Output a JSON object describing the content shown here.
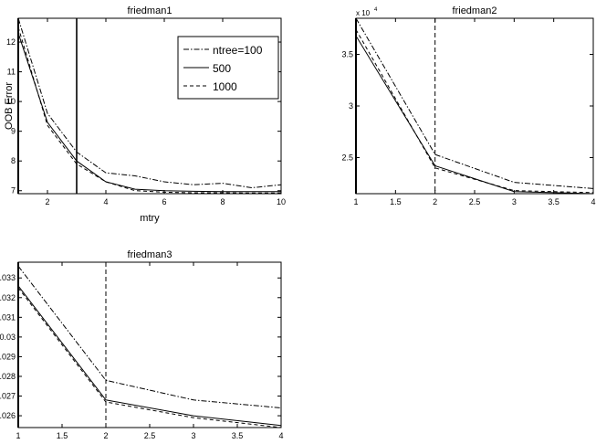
{
  "chart_data": [
    {
      "type": "line",
      "title": "friedman1",
      "xlabel": "mtry",
      "ylabel": "OOB Error",
      "xlim": [
        1,
        10
      ],
      "ylim": [
        6.9,
        12.8
      ],
      "xticks": [
        2,
        4,
        6,
        8,
        10
      ],
      "yticks": [
        7,
        8,
        9,
        10,
        11,
        12
      ],
      "grid": false,
      "legend": "top-right",
      "vline": 3,
      "vline_style": "solid",
      "series": [
        {
          "name": "ntree=100",
          "style": "dashdot",
          "x": [
            1,
            2,
            3,
            4,
            5,
            6,
            7,
            8,
            9,
            10
          ],
          "y": [
            12.8,
            9.6,
            8.3,
            7.6,
            7.5,
            7.3,
            7.2,
            7.25,
            7.1,
            7.2
          ]
        },
        {
          "name": "500",
          "style": "solid",
          "x": [
            1,
            2,
            3,
            4,
            5,
            6,
            7,
            8,
            9,
            10
          ],
          "y": [
            12.3,
            9.3,
            8.0,
            7.3,
            7.05,
            7.0,
            6.98,
            6.97,
            6.97,
            6.97
          ]
        },
        {
          "name": "1000",
          "style": "dashed",
          "x": [
            1,
            2,
            3,
            4,
            5,
            6,
            7,
            8,
            9,
            10
          ],
          "y": [
            12.5,
            9.2,
            7.9,
            7.3,
            7.0,
            6.95,
            6.93,
            6.93,
            6.92,
            6.92
          ]
        }
      ]
    },
    {
      "type": "line",
      "title": "friedman2",
      "xlim": [
        1,
        4
      ],
      "ylim": [
        21500,
        38500
      ],
      "xticks": [
        1,
        1.5,
        2,
        2.5,
        3,
        3.5,
        4
      ],
      "yticks": [
        25000,
        30000,
        35000
      ],
      "ytick_labels": [
        "2.5",
        "3",
        "3.5"
      ],
      "y_exponent_label": "x 10",
      "y_exponent_power": "4",
      "grid": false,
      "vline": 2,
      "vline_style": "dashed",
      "series": [
        {
          "name": "ntree=100",
          "style": "dashdot",
          "x": [
            1,
            2,
            3,
            4
          ],
          "y": [
            38500,
            25300,
            22600,
            22000
          ]
        },
        {
          "name": "500",
          "style": "solid",
          "x": [
            1,
            2,
            3,
            4
          ],
          "y": [
            36800,
            24200,
            21700,
            21500
          ]
        },
        {
          "name": "1000",
          "style": "dashed",
          "x": [
            1,
            2,
            3,
            4
          ],
          "y": [
            37400,
            24000,
            21800,
            21600
          ]
        }
      ]
    },
    {
      "type": "line",
      "title": "friedman3",
      "xlim": [
        1,
        4
      ],
      "ylim": [
        0.0254,
        0.0338
      ],
      "xticks": [
        1,
        1.5,
        2,
        2.5,
        3,
        3.5,
        4
      ],
      "yticks": [
        0.026,
        0.027,
        0.028,
        0.029,
        0.03,
        0.031,
        0.032,
        0.033
      ],
      "ytick_labels": [
        "0.026",
        "0.027",
        "0.028",
        "0.029",
        "0.03",
        "0.031",
        "0.032",
        "0.033"
      ],
      "grid": false,
      "vline": 2,
      "vline_style": "dashed",
      "series": [
        {
          "name": "ntree=100",
          "style": "dashdot",
          "x": [
            1,
            2,
            3,
            4
          ],
          "y": [
            0.0336,
            0.0278,
            0.0268,
            0.0264
          ]
        },
        {
          "name": "500",
          "style": "solid",
          "x": [
            1,
            2,
            3,
            4
          ],
          "y": [
            0.0326,
            0.0268,
            0.026,
            0.0255
          ]
        },
        {
          "name": "1000",
          "style": "dashed",
          "x": [
            1,
            2,
            3,
            4
          ],
          "y": [
            0.0325,
            0.0267,
            0.0259,
            0.0254
          ]
        }
      ]
    }
  ]
}
